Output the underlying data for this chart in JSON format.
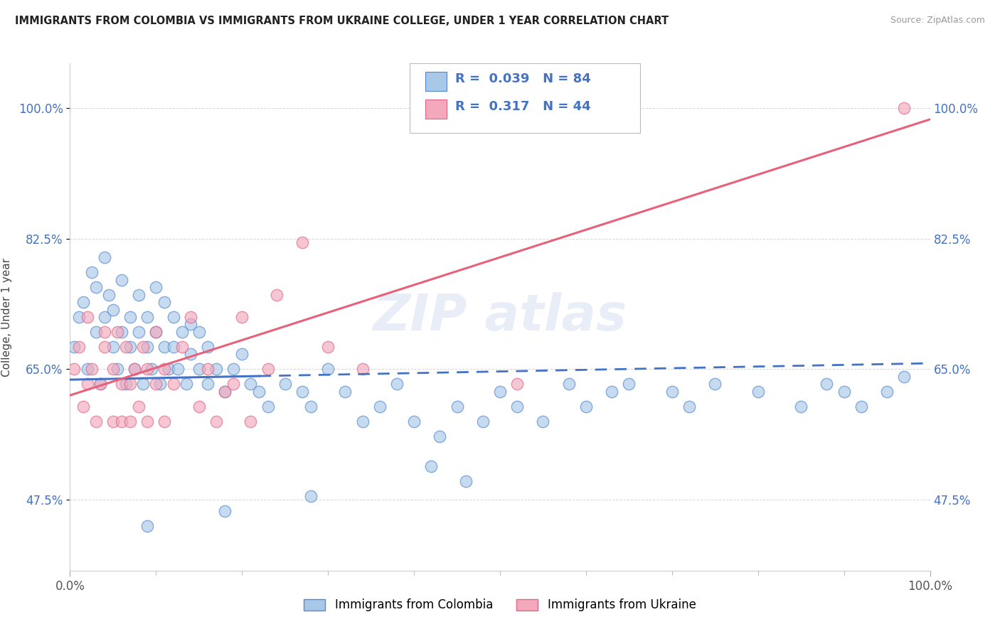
{
  "title": "IMMIGRANTS FROM COLOMBIA VS IMMIGRANTS FROM UKRAINE COLLEGE, UNDER 1 YEAR CORRELATION CHART",
  "source": "Source: ZipAtlas.com",
  "ylabel": "College, Under 1 year",
  "xlim": [
    0.0,
    1.0
  ],
  "ylim": [
    0.38,
    1.06
  ],
  "x_tick_labels": [
    "0.0%",
    "100.0%"
  ],
  "x_tick_values": [
    0.0,
    1.0
  ],
  "x_minor_ticks": [
    0.1,
    0.2,
    0.3,
    0.4,
    0.5,
    0.6,
    0.7,
    0.8,
    0.9
  ],
  "y_tick_labels": [
    "47.5%",
    "65.0%",
    "82.5%",
    "100.0%"
  ],
  "y_tick_values": [
    0.475,
    0.65,
    0.825,
    1.0
  ],
  "color_colombia": "#a8c8e8",
  "color_ukraine": "#f4a8bc",
  "edge_color_colombia": "#5588cc",
  "edge_color_ukraine": "#dd6688",
  "line_color_colombia": "#4472c4",
  "line_color_ukraine": "#e8607a",
  "R_colombia": 0.039,
  "N_colombia": 84,
  "R_ukraine": 0.317,
  "N_ukraine": 44,
  "legend_label_colombia": "Immigrants from Colombia",
  "legend_label_ukraine": "Immigrants from Ukraine",
  "colombia_x": [
    0.005,
    0.01,
    0.015,
    0.02,
    0.025,
    0.03,
    0.03,
    0.035,
    0.04,
    0.04,
    0.045,
    0.05,
    0.05,
    0.055,
    0.06,
    0.06,
    0.065,
    0.07,
    0.07,
    0.075,
    0.08,
    0.08,
    0.085,
    0.09,
    0.09,
    0.095,
    0.1,
    0.1,
    0.105,
    0.11,
    0.11,
    0.115,
    0.12,
    0.12,
    0.125,
    0.13,
    0.135,
    0.14,
    0.14,
    0.15,
    0.15,
    0.16,
    0.16,
    0.17,
    0.18,
    0.19,
    0.2,
    0.21,
    0.22,
    0.23,
    0.25,
    0.27,
    0.28,
    0.3,
    0.32,
    0.34,
    0.36,
    0.38,
    0.4,
    0.43,
    0.45,
    0.48,
    0.5,
    0.52,
    0.55,
    0.58,
    0.6,
    0.63,
    0.65,
    0.7,
    0.72,
    0.75,
    0.8,
    0.85,
    0.88,
    0.9,
    0.92,
    0.95,
    0.97,
    0.42,
    0.46,
    0.28,
    0.18,
    0.09
  ],
  "colombia_y": [
    0.68,
    0.72,
    0.74,
    0.65,
    0.78,
    0.7,
    0.76,
    0.63,
    0.8,
    0.72,
    0.75,
    0.68,
    0.73,
    0.65,
    0.7,
    0.77,
    0.63,
    0.68,
    0.72,
    0.65,
    0.7,
    0.75,
    0.63,
    0.68,
    0.72,
    0.65,
    0.7,
    0.76,
    0.63,
    0.68,
    0.74,
    0.65,
    0.68,
    0.72,
    0.65,
    0.7,
    0.63,
    0.67,
    0.71,
    0.65,
    0.7,
    0.63,
    0.68,
    0.65,
    0.62,
    0.65,
    0.67,
    0.63,
    0.62,
    0.6,
    0.63,
    0.62,
    0.6,
    0.65,
    0.62,
    0.58,
    0.6,
    0.63,
    0.58,
    0.56,
    0.6,
    0.58,
    0.62,
    0.6,
    0.58,
    0.63,
    0.6,
    0.62,
    0.63,
    0.62,
    0.6,
    0.63,
    0.62,
    0.6,
    0.63,
    0.62,
    0.6,
    0.62,
    0.64,
    0.52,
    0.5,
    0.48,
    0.46,
    0.44
  ],
  "ukraine_x": [
    0.005,
    0.01,
    0.015,
    0.02,
    0.02,
    0.025,
    0.03,
    0.035,
    0.04,
    0.04,
    0.05,
    0.05,
    0.055,
    0.06,
    0.06,
    0.065,
    0.07,
    0.07,
    0.075,
    0.08,
    0.085,
    0.09,
    0.09,
    0.1,
    0.1,
    0.11,
    0.11,
    0.12,
    0.13,
    0.14,
    0.15,
    0.16,
    0.17,
    0.18,
    0.19,
    0.2,
    0.21,
    0.23,
    0.24,
    0.27,
    0.3,
    0.34,
    0.52,
    0.97
  ],
  "ukraine_y": [
    0.65,
    0.68,
    0.6,
    0.63,
    0.72,
    0.65,
    0.58,
    0.63,
    0.68,
    0.7,
    0.58,
    0.65,
    0.7,
    0.58,
    0.63,
    0.68,
    0.58,
    0.63,
    0.65,
    0.6,
    0.68,
    0.58,
    0.65,
    0.63,
    0.7,
    0.58,
    0.65,
    0.63,
    0.68,
    0.72,
    0.6,
    0.65,
    0.58,
    0.62,
    0.63,
    0.72,
    0.58,
    0.65,
    0.75,
    0.82,
    0.68,
    0.65,
    0.63,
    1.0
  ],
  "watermark_text": "ZIP atlas",
  "bg_color": "#ffffff",
  "grid_color": "#cccccc",
  "spine_color": "#cccccc"
}
